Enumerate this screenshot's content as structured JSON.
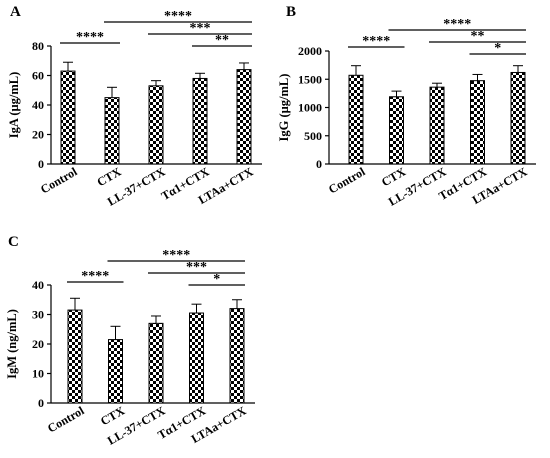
{
  "chart_data": [
    {
      "panel": "A",
      "type": "bar",
      "ylabel": "IgA (μg/mL)",
      "categories": [
        "Control",
        "CTX",
        "LL-37+CTX",
        "Tα1+CTX",
        "LTAa+CTX"
      ],
      "values": [
        63,
        45,
        53,
        58,
        64
      ],
      "errors": [
        6,
        7,
        3.5,
        3.5,
        4.5
      ],
      "ylim": [
        0,
        80
      ],
      "yticks": [
        0,
        20,
        40,
        60,
        80
      ],
      "fill": "checkerboard",
      "legend": false,
      "grid": false,
      "significance": [
        {
          "from": 0,
          "to": 1,
          "label": "****"
        },
        {
          "from": 1,
          "to": 4,
          "label": "****"
        },
        {
          "from": 2,
          "to": 4,
          "label": "***"
        },
        {
          "from": 3,
          "to": 4,
          "label": "**"
        }
      ]
    },
    {
      "panel": "B",
      "type": "bar",
      "ylabel": "IgG (μg/mL)",
      "categories": [
        "Control",
        "CTX",
        "LL-37+CTX",
        "Tα1+CTX",
        "LTAa+CTX"
      ],
      "values": [
        1570,
        1190,
        1360,
        1475,
        1620
      ],
      "errors": [
        170,
        100,
        70,
        110,
        120
      ],
      "ylim": [
        0,
        2000
      ],
      "yticks": [
        0,
        500,
        1000,
        1500,
        2000
      ],
      "fill": "checkerboard",
      "legend": false,
      "grid": false,
      "significance": [
        {
          "from": 0,
          "to": 1,
          "label": "****"
        },
        {
          "from": 1,
          "to": 4,
          "label": "****"
        },
        {
          "from": 2,
          "to": 4,
          "label": "**"
        },
        {
          "from": 3,
          "to": 4,
          "label": "*"
        }
      ]
    },
    {
      "panel": "C",
      "type": "bar",
      "ylabel": "IgM (ng/mL)",
      "categories": [
        "Control",
        "CTX",
        "LL-37+CTX",
        "Tα1+CTX",
        "LTAa+CTX"
      ],
      "values": [
        31.5,
        21.5,
        27,
        30.5,
        32
      ],
      "errors": [
        4,
        4.5,
        2.5,
        3,
        3
      ],
      "ylim": [
        0,
        40
      ],
      "yticks": [
        0,
        10,
        20,
        30,
        40
      ],
      "fill": "checkerboard",
      "legend": false,
      "grid": false,
      "significance": [
        {
          "from": 0,
          "to": 1,
          "label": "****"
        },
        {
          "from": 1,
          "to": 4,
          "label": "****"
        },
        {
          "from": 2,
          "to": 4,
          "label": "***"
        },
        {
          "from": 3,
          "to": 4,
          "label": "*"
        }
      ]
    }
  ]
}
